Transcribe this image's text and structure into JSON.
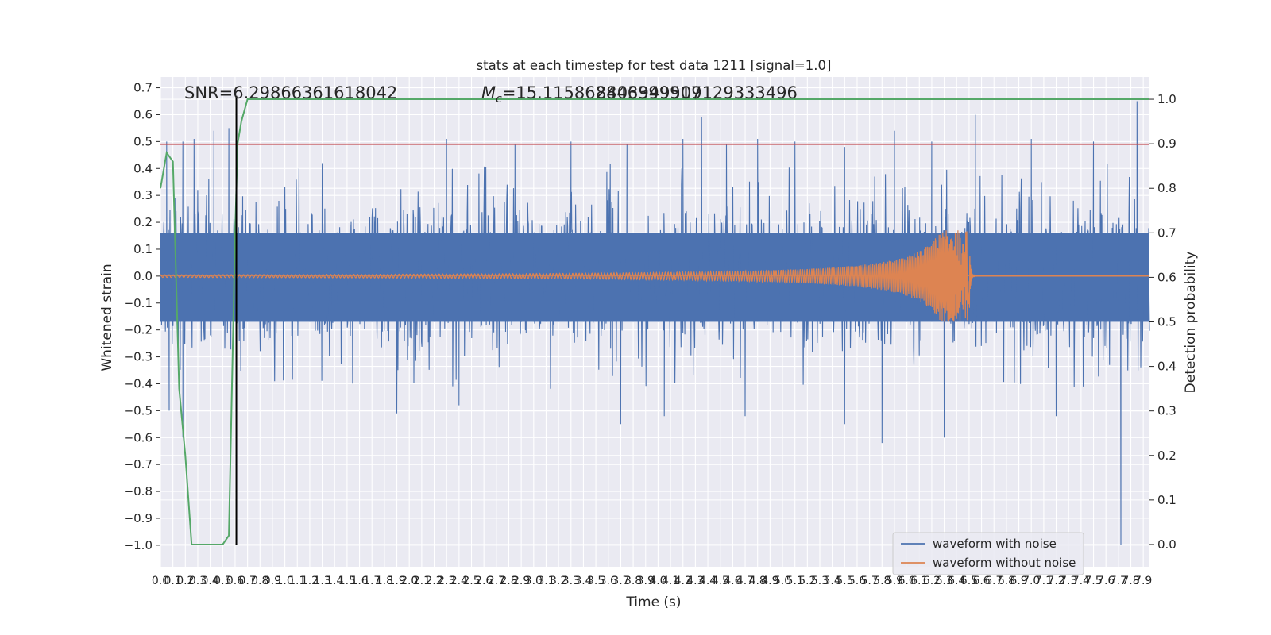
{
  "chart_data": {
    "type": "line",
    "title": "stats at each timestep for test data 1211 [signal=1.0]",
    "xlabel": "Time (s)",
    "ylabel_left": "Whitened strain",
    "ylabel_right": "Detection probability",
    "xlim": [
      0.0,
      7.95
    ],
    "ylim_left": [
      -1.08,
      0.74
    ],
    "ylim_right": [
      -0.05,
      1.05
    ],
    "x_ticks": [
      0.0,
      0.1,
      0.2,
      0.3,
      0.4,
      0.5,
      0.6,
      0.7,
      0.8,
      0.9,
      1.0,
      1.1,
      1.2,
      1.3,
      1.4,
      1.5,
      1.6,
      1.7,
      1.8,
      1.9,
      2.0,
      2.1,
      2.2,
      2.3,
      2.4,
      2.5,
      2.6,
      2.7,
      2.8,
      2.9,
      3.0,
      3.1,
      3.2,
      3.3,
      3.4,
      3.5,
      3.6,
      3.7,
      3.8,
      3.9,
      4.0,
      4.1,
      4.2,
      4.3,
      4.4,
      4.5,
      4.6,
      4.7,
      4.8,
      4.9,
      5.0,
      5.1,
      5.2,
      5.3,
      5.4,
      5.5,
      5.6,
      5.7,
      5.8,
      5.9,
      6.0,
      6.1,
      6.2,
      6.3,
      6.4,
      6.5,
      6.6,
      6.7,
      6.8,
      6.9,
      7.0,
      7.1,
      7.2,
      7.3,
      7.4,
      7.5,
      7.6,
      7.7,
      7.8,
      7.9
    ],
    "y_ticks_left": [
      0.7,
      0.6,
      0.5,
      0.4,
      0.3,
      0.2,
      0.1,
      0.0,
      -0.1,
      -0.2,
      -0.3,
      -0.4,
      -0.5,
      -0.6,
      -0.7,
      -0.8,
      -0.9,
      -1.0
    ],
    "y_tick_labels_left": [
      "0.7",
      "0.6",
      "0.5",
      "0.4",
      "0.3",
      "0.2",
      "0.1",
      "0.0",
      "−0.1",
      "−0.2",
      "−0.3",
      "−0.4",
      "−0.5",
      "−0.6",
      "−0.7",
      "−0.8",
      "−0.9",
      "−1.0"
    ],
    "y_ticks_right": [
      1.0,
      0.9,
      0.8,
      0.7,
      0.6,
      0.5,
      0.4,
      0.3,
      0.2,
      0.1,
      0.0
    ],
    "y_tick_labels_right": [
      "1.0",
      "0.9",
      "0.8",
      "0.7",
      "0.6",
      "0.5",
      "0.4",
      "0.3",
      "0.2",
      "0.1",
      "0.0"
    ],
    "grid": true,
    "legend_position": "lower-right",
    "series": [
      {
        "name": "waveform with noise",
        "color": "#4c72b0",
        "noise_band": [
          -0.17,
          0.16
        ],
        "peaks": [
          [
            0.05,
            0.5
          ],
          [
            0.18,
            0.5
          ],
          [
            0.27,
            0.51
          ],
          [
            0.43,
            0.54
          ],
          [
            0.55,
            0.55
          ],
          [
            1.3,
            0.42
          ],
          [
            2.3,
            0.51
          ],
          [
            2.85,
            0.49
          ],
          [
            3.3,
            0.5
          ],
          [
            3.75,
            0.49
          ],
          [
            4.2,
            0.51
          ],
          [
            4.35,
            0.59
          ],
          [
            4.55,
            0.49
          ],
          [
            4.8,
            0.51
          ],
          [
            5.1,
            0.5
          ],
          [
            5.5,
            0.48
          ],
          [
            5.9,
            0.54
          ],
          [
            6.2,
            0.5
          ],
          [
            6.55,
            0.6
          ],
          [
            7.0,
            0.51
          ],
          [
            7.5,
            0.5
          ],
          [
            7.85,
            0.65
          ]
        ],
        "troughs": [
          [
            0.07,
            -0.5
          ],
          [
            0.18,
            -0.6
          ],
          [
            1.9,
            -0.51
          ],
          [
            2.4,
            -0.48
          ],
          [
            3.7,
            -0.55
          ],
          [
            4.05,
            -0.52
          ],
          [
            4.7,
            -0.52
          ],
          [
            5.5,
            -0.55
          ],
          [
            5.8,
            -0.62
          ],
          [
            6.3,
            -0.6
          ],
          [
            7.2,
            -0.52
          ],
          [
            7.72,
            -1.0
          ]
        ]
      },
      {
        "name": "waveform without noise",
        "color": "#dd8452",
        "merger_time": 6.5,
        "peak_amplitude": 0.17,
        "start_amplitude": 0.005
      }
    ],
    "detection_probability": {
      "color": "#55a868",
      "x": [
        0.0,
        0.05,
        0.1,
        0.15,
        0.2,
        0.25,
        0.3,
        0.35,
        0.4,
        0.45,
        0.5,
        0.55,
        0.6,
        0.62,
        0.65,
        0.7,
        7.95
      ],
      "y": [
        0.8,
        0.88,
        0.86,
        0.35,
        0.2,
        0.0,
        0.0,
        0.0,
        0.0,
        0.0,
        0.0,
        0.02,
        0.7,
        0.9,
        0.95,
        1.0,
        1.0
      ]
    },
    "reference_lines": [
      {
        "axis": "left",
        "value": 0.49,
        "color": "#c44e52"
      },
      {
        "axis": "left",
        "value": 0.003,
        "color": "#dd8452"
      }
    ],
    "vertical_line": {
      "x": 0.61,
      "y_from": -1.0,
      "y_to": 0.67,
      "color": "#000000"
    },
    "annotations": {
      "snr": "SNR=6.29866361618042",
      "mc_symbol": "M",
      "mc_subscript": "c",
      "mc_value": "=15.115862846399917",
      "overlap_value": "8403949509129333496"
    }
  }
}
